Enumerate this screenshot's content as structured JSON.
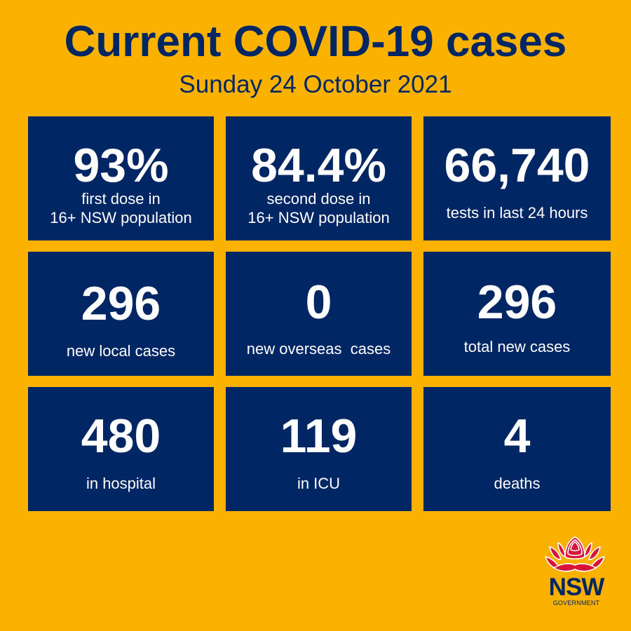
{
  "header": {
    "title": "Current COVID-19 cases",
    "date": "Sunday 24 October 2021"
  },
  "stats": [
    {
      "value": "93%",
      "label_line1": "first dose in",
      "label_line2": "16+ NSW population"
    },
    {
      "value": "84.4%",
      "label_line1": "second dose in",
      "label_line2": "16+ NSW population"
    },
    {
      "value": "66,740",
      "label_line1": "tests in last 24 hours"
    },
    {
      "value": "296",
      "label_line1": "new local cases"
    },
    {
      "value": "0",
      "label_line1": "new overseas  cases"
    },
    {
      "value": "296",
      "label_line1": "total new cases"
    },
    {
      "value": "480",
      "label_line1": "in hospital"
    },
    {
      "value": "119",
      "label_line1": "in ICU"
    },
    {
      "value": "4",
      "label_line1": "deaths"
    }
  ],
  "logo": {
    "name": "NSW",
    "sub": "GOVERNMENT",
    "icon": "waratah-flower-icon"
  },
  "colors": {
    "background": "#FBB100",
    "tile": "#002664",
    "text_light": "#FFFFFF",
    "logo_red": "#D7153A"
  }
}
